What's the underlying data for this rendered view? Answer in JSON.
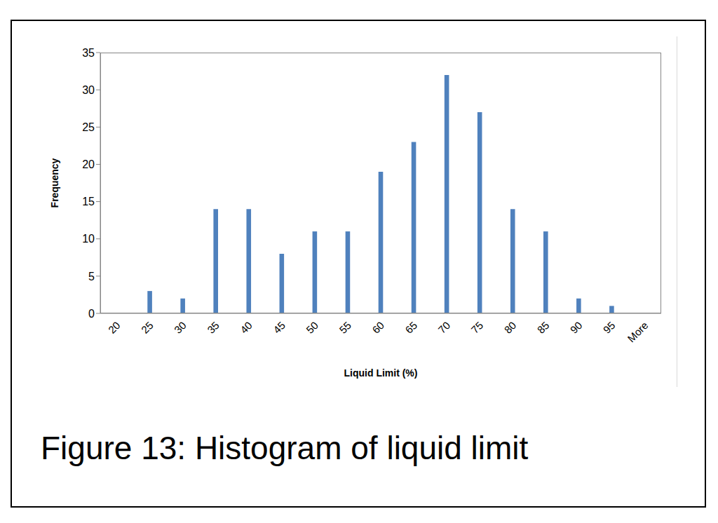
{
  "chart_data": {
    "type": "bar",
    "title": "Figure 13: Histogram of liquid limit",
    "x_label": "Liquid Limit (%)",
    "y_label": "Frequency",
    "categories": [
      "20",
      "25",
      "30",
      "35",
      "40",
      "45",
      "50",
      "55",
      "60",
      "65",
      "70",
      "75",
      "80",
      "85",
      "90",
      "95",
      "More"
    ],
    "values": [
      0,
      3,
      2,
      14,
      14,
      8,
      11,
      11,
      19,
      23,
      32,
      27,
      14,
      11,
      2,
      1,
      0
    ],
    "color": "#4f81bd",
    "ylim": [
      0,
      35
    ],
    "yticks": [
      0,
      5,
      10,
      15,
      20,
      25,
      30,
      35
    ],
    "grid": false
  }
}
